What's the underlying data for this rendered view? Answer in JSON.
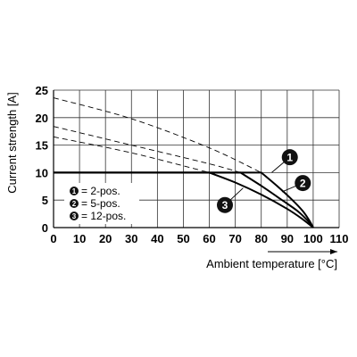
{
  "chart_data": {
    "type": "line",
    "xlabel": "Ambient temperature [°C]",
    "ylabel": "Current strength [A]",
    "xlim": [
      0,
      110
    ],
    "ylim": [
      0,
      25
    ],
    "x_ticks": [
      "0",
      "10",
      "20",
      "30",
      "40",
      "50",
      "60",
      "70",
      "80",
      "90",
      "100",
      "110"
    ],
    "y_ticks": [
      "0",
      "5",
      "10",
      "15",
      "20",
      "25"
    ],
    "grid": true,
    "legend": [
      {
        "marker": "1",
        "text": "= 2-pos."
      },
      {
        "marker": "2",
        "text": "= 5-pos."
      },
      {
        "marker": "3",
        "text": "= 12-pos."
      }
    ],
    "series": [
      {
        "marker": "1",
        "limited": [
          [
            0,
            10
          ],
          [
            80,
            10
          ],
          [
            86,
            7.6
          ],
          [
            92,
            5
          ],
          [
            96,
            3
          ],
          [
            98.5,
            1.3
          ],
          [
            100,
            0
          ]
        ],
        "derating_dashed": [
          [
            0,
            23.6
          ],
          [
            30,
            19.8
          ],
          [
            60,
            14.5
          ],
          [
            80,
            10
          ]
        ]
      },
      {
        "marker": "2",
        "limited": [
          [
            0,
            10
          ],
          [
            72,
            10
          ],
          [
            80,
            7.6
          ],
          [
            88,
            5
          ],
          [
            94,
            3
          ],
          [
            98,
            1.2
          ],
          [
            100,
            0
          ]
        ],
        "derating_dashed": [
          [
            0,
            18.4
          ],
          [
            30,
            15
          ],
          [
            60,
            11.6
          ],
          [
            72,
            10
          ]
        ]
      },
      {
        "marker": "3",
        "limited": [
          [
            0,
            10
          ],
          [
            60,
            10
          ],
          [
            70,
            8.2
          ],
          [
            80,
            6
          ],
          [
            90,
            3.4
          ],
          [
            96,
            1.5
          ],
          [
            100,
            0
          ]
        ],
        "derating_dashed": [
          [
            0,
            16.5
          ],
          [
            30,
            13.6
          ],
          [
            60,
            10
          ]
        ]
      }
    ],
    "badges": [
      {
        "marker": "1",
        "x": 91,
        "y": 12.8,
        "tip": [
          84,
          10
        ]
      },
      {
        "marker": "2",
        "x": 96,
        "y": 8.1,
        "tip": [
          88,
          6.5
        ]
      },
      {
        "marker": "3",
        "x": 66,
        "y": 4.1,
        "tip": [
          73,
          7.2
        ]
      }
    ]
  }
}
